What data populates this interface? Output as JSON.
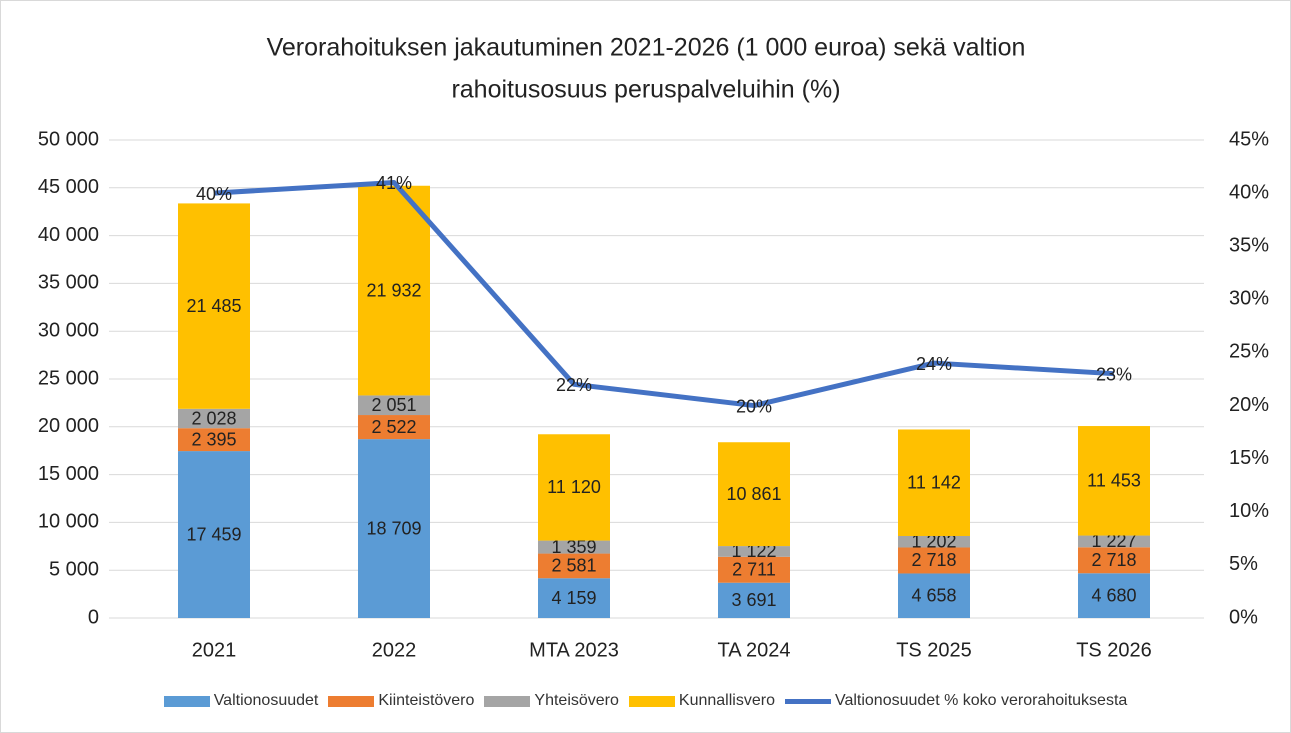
{
  "chart_data": {
    "type": "stacked_bar_line",
    "title": [
      "Verorahoituksen jakautuminen 2021-2026 (1 000 euroa) sekä valtion",
      "rahoitusosuus peruspalveluihin (%)"
    ],
    "categories": [
      "2021",
      "2022",
      "MTA 2023",
      "TA 2024",
      "TS 2025",
      "TS 2026"
    ],
    "series": [
      {
        "name": "Valtionosuudet",
        "color": "#5b9bd5",
        "values": [
          17459,
          18709,
          4159,
          3691,
          4658,
          4680
        ],
        "value_labels": [
          "17 459",
          "18 709",
          "4 159",
          "3 691",
          "4 658",
          "4 680"
        ]
      },
      {
        "name": "Kiinteistövero",
        "color": "#ed7d31",
        "values": [
          2395,
          2522,
          2581,
          2711,
          2718,
          2718
        ],
        "value_labels": [
          "2 395",
          "2 522",
          "2 581",
          "2 711",
          "2 718",
          "2 718"
        ]
      },
      {
        "name": "Yhteisövero",
        "color": "#a5a5a5",
        "values": [
          2028,
          2051,
          1359,
          1122,
          1202,
          1227
        ],
        "value_labels": [
          "2 028",
          "2 051",
          "1 359",
          "1 122",
          "1 202",
          "1 227"
        ]
      },
      {
        "name": "Kunnallisvero",
        "color": "#ffc000",
        "values": [
          21485,
          21932,
          11120,
          10861,
          11142,
          11453
        ],
        "value_labels": [
          "21 485",
          "21 932",
          "11 120",
          "10 861",
          "11 142",
          "11 453"
        ]
      },
      {
        "name": "Valtionosuudet % koko verorahoituksesta",
        "color": "#4472c4",
        "axis": "y2",
        "kind": "line",
        "values": [
          40,
          41,
          22,
          20,
          24,
          23
        ],
        "value_labels": [
          "40%",
          "41%",
          "22%",
          "20%",
          "24%",
          "23%"
        ]
      }
    ],
    "ylim": [
      0,
      50000
    ],
    "yticks": [
      0,
      {
        "value": 5000,
        "label": "5 000"
      },
      {
        "value": 10000,
        "label": "10 000"
      },
      {
        "value": 15000,
        "label": "15 000"
      },
      {
        "value": 20000,
        "label": "20 000"
      },
      {
        "value": 25000,
        "label": "25 000"
      },
      {
        "value": 30000,
        "label": "30 000"
      },
      {
        "value": 35000,
        "label": "35 000"
      },
      {
        "value": 40000,
        "label": "40 000"
      },
      {
        "value": 45000,
        "label": "45 000"
      },
      {
        "value": 50000,
        "label": "50 000"
      }
    ],
    "y2lim": [
      0,
      45
    ],
    "y2ticks": [
      {
        "value": 0,
        "label": "0%"
      },
      {
        "value": 5,
        "label": "5%"
      },
      {
        "value": 10,
        "label": "10%"
      },
      {
        "value": 15,
        "label": "15%"
      },
      {
        "value": 20,
        "label": "20%"
      },
      {
        "value": 25,
        "label": "25%"
      },
      {
        "value": 30,
        "label": "30%"
      },
      {
        "value": 35,
        "label": "35%"
      },
      {
        "value": 40,
        "label": "40%"
      },
      {
        "value": 45,
        "label": "45%"
      }
    ],
    "grid": true,
    "legend": "bottom"
  }
}
